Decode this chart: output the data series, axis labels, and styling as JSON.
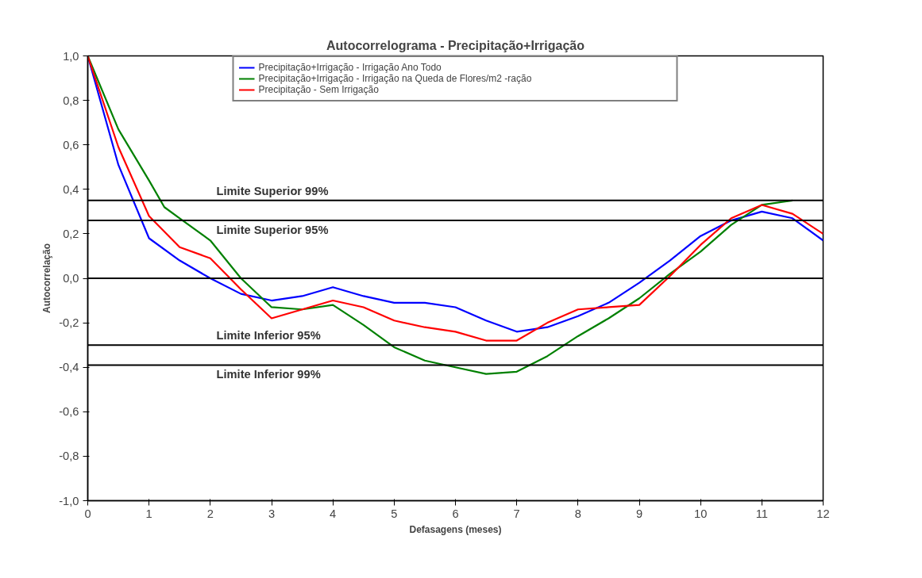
{
  "chart_data": {
    "type": "line",
    "title": "Autocorrelograma - Precipitação+Irrigação",
    "xlabel": "Defasagens (meses)",
    "ylabel": "Autocorrelação",
    "xlim": [
      0,
      12
    ],
    "xticks": [
      0,
      1,
      2,
      3,
      4,
      5,
      6,
      7,
      8,
      9,
      10,
      11,
      12
    ],
    "ylim": [
      -1,
      1
    ],
    "yticks": [
      {
        "value": -1,
        "label": "-1,0"
      },
      {
        "value": -0.8,
        "label": "-0,8"
      },
      {
        "value": -0.6,
        "label": "-0,6"
      },
      {
        "value": -0.4,
        "label": "-0,4"
      },
      {
        "value": -0.2,
        "label": "-0,2"
      },
      {
        "value": 0,
        "label": "0,0"
      },
      {
        "value": 0.2,
        "label": "0,2"
      },
      {
        "value": 0.4,
        "label": "0,4"
      },
      {
        "value": 0.6,
        "label": "0,6"
      },
      {
        "value": 0.8,
        "label": "0,8"
      },
      {
        "value": 1,
        "label": "1,0"
      }
    ],
    "grid": false,
    "legend": "top",
    "marker": "none",
    "line_style": "solid",
    "series": [
      {
        "name": "Precipitação+Irrigação - Irrigação Ano Todo",
        "color": "#0000ff",
        "x": [
          0,
          0.5,
          1,
          1.5,
          2,
          2.5,
          3,
          3.5,
          4,
          4.5,
          5,
          5.5,
          6,
          6.5,
          7,
          7.5,
          8,
          8.5,
          9,
          9.5,
          10,
          10.5,
          11,
          11.5,
          12
        ],
        "values": [
          1.0,
          0.51,
          0.18,
          0.08,
          0.0,
          -0.07,
          -0.1,
          -0.08,
          -0.04,
          -0.08,
          -0.11,
          -0.11,
          -0.13,
          -0.19,
          -0.24,
          -0.22,
          -0.17,
          -0.11,
          -0.02,
          0.08,
          0.19,
          0.26,
          0.3,
          0.27,
          0.17
        ]
      },
      {
        "name": "Precipitação+Irrigação - Irrigação na Queda de Flores/m2 -ração",
        "color": "#008000",
        "x": [
          0,
          0.5,
          1,
          1.25,
          1.5,
          2,
          2.5,
          3,
          3.5,
          4,
          4.5,
          5,
          5.5,
          6,
          6.5,
          7,
          7.5,
          8,
          8.5,
          9,
          9.5,
          10,
          10.5,
          11,
          11.5
        ],
        "values": [
          1.0,
          0.67,
          0.44,
          0.32,
          0.27,
          0.17,
          0.0,
          -0.13,
          -0.14,
          -0.12,
          -0.21,
          -0.31,
          -0.37,
          -0.4,
          -0.43,
          -0.42,
          -0.35,
          -0.26,
          -0.18,
          -0.09,
          0.02,
          0.12,
          0.24,
          0.33,
          0.35
        ]
      },
      {
        "name": "Precipitação - Sem Irrigação",
        "color": "#ff0000",
        "x": [
          0,
          0.5,
          1,
          1.5,
          2,
          2.5,
          3,
          3.5,
          4,
          4.5,
          5,
          5.5,
          6,
          6.5,
          7,
          7.5,
          8,
          8.5,
          9,
          9.5,
          10,
          10.5,
          11,
          11.5,
          12
        ],
        "values": [
          1.0,
          0.59,
          0.28,
          0.14,
          0.09,
          -0.05,
          -0.18,
          -0.14,
          -0.1,
          -0.13,
          -0.19,
          -0.22,
          -0.24,
          -0.28,
          -0.28,
          -0.2,
          -0.14,
          -0.13,
          -0.12,
          0.01,
          0.15,
          0.27,
          0.33,
          0.29,
          0.2
        ]
      }
    ],
    "ref_lines": [
      {
        "axis": "y",
        "value": 0.35,
        "label": "Limite Superior 99%",
        "color": "#000000"
      },
      {
        "axis": "y",
        "value": 0.26,
        "label": "Limite Superior 95%",
        "color": "#000000"
      },
      {
        "axis": "y",
        "value": -0.3,
        "label": "Limite Inferior 95%",
        "color": "#000000"
      },
      {
        "axis": "y",
        "value": -0.39,
        "label": "Limite Inferior 99%",
        "color": "#000000"
      },
      {
        "axis": "y",
        "value": 0,
        "label": null,
        "color": "#000000"
      }
    ]
  }
}
